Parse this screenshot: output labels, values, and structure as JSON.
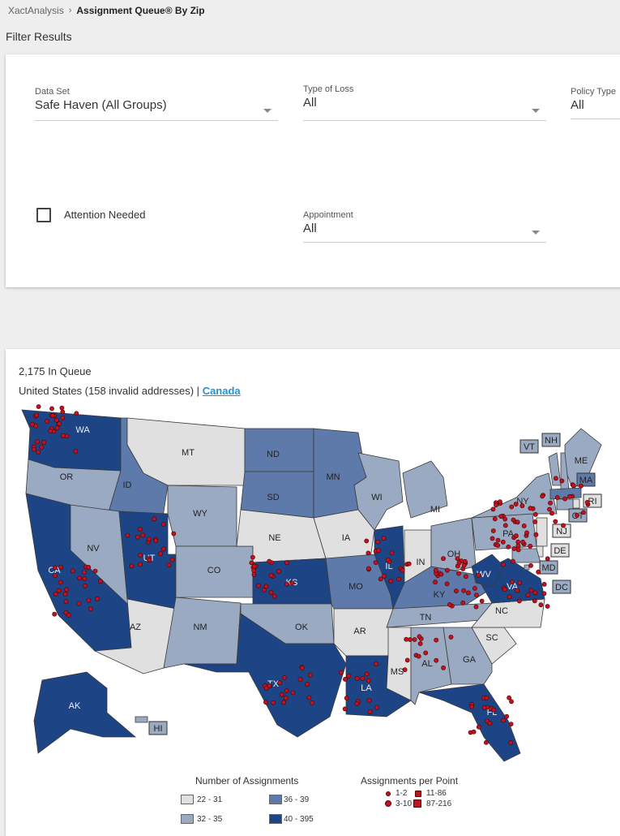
{
  "breadcrumb": {
    "root": "XactAnalysis",
    "separator": "›",
    "current": "Assignment Queue® By Zip"
  },
  "filters": {
    "title": "Filter Results",
    "data_set": {
      "label": "Data Set",
      "value": "Safe Haven (All Groups)"
    },
    "type_of_loss": {
      "label": "Type of Loss",
      "value": "All"
    },
    "policy_type": {
      "label": "Policy Type",
      "value": "All"
    },
    "attention_needed": {
      "label": "Attention Needed",
      "checked": false
    },
    "appointment": {
      "label": "Appointment",
      "value": "All"
    }
  },
  "map": {
    "queue_count": "2,175 In Queue",
    "country_line": "United States (158 invalid addresses) |",
    "canada_link": "Canada",
    "colors": {
      "c1": "#e0e0e0",
      "c2": "#9aaac2",
      "c3": "#5d7aab",
      "c4": "#1d4585",
      "dot": "#c1121f"
    },
    "states": [
      {
        "abbr": "WA",
        "level": 4
      },
      {
        "abbr": "OR",
        "level": 2
      },
      {
        "abbr": "CA",
        "level": 4
      },
      {
        "abbr": "ID",
        "level": 3
      },
      {
        "abbr": "NV",
        "level": 2
      },
      {
        "abbr": "UT",
        "level": 4
      },
      {
        "abbr": "AZ",
        "level": 1
      },
      {
        "abbr": "MT",
        "level": 1
      },
      {
        "abbr": "WY",
        "level": 2
      },
      {
        "abbr": "CO",
        "level": 2
      },
      {
        "abbr": "NM",
        "level": 2
      },
      {
        "abbr": "ND",
        "level": 3
      },
      {
        "abbr": "SD",
        "level": 3
      },
      {
        "abbr": "NE",
        "level": 1
      },
      {
        "abbr": "KS",
        "level": 4
      },
      {
        "abbr": "OK",
        "level": 2
      },
      {
        "abbr": "TX",
        "level": 4
      },
      {
        "abbr": "MN",
        "level": 3
      },
      {
        "abbr": "IA",
        "level": 1
      },
      {
        "abbr": "MO",
        "level": 3
      },
      {
        "abbr": "AR",
        "level": 1
      },
      {
        "abbr": "LA",
        "level": 4
      },
      {
        "abbr": "WI",
        "level": 2
      },
      {
        "abbr": "IL",
        "level": 4
      },
      {
        "abbr": "MI",
        "level": 2
      },
      {
        "abbr": "IN",
        "level": 1
      },
      {
        "abbr": "OH",
        "level": 2
      },
      {
        "abbr": "KY",
        "level": 3
      },
      {
        "abbr": "TN",
        "level": 2
      },
      {
        "abbr": "MS",
        "level": 1
      },
      {
        "abbr": "AL",
        "level": 2
      },
      {
        "abbr": "GA",
        "level": 2
      },
      {
        "abbr": "FL",
        "level": 4
      },
      {
        "abbr": "SC",
        "level": 1
      },
      {
        "abbr": "NC",
        "level": 1
      },
      {
        "abbr": "VA",
        "level": 4
      },
      {
        "abbr": "WV",
        "level": 4
      },
      {
        "abbr": "PA",
        "level": 2
      },
      {
        "abbr": "NY",
        "level": 2
      },
      {
        "abbr": "ME",
        "level": 2
      },
      {
        "abbr": "VT",
        "level": 2
      },
      {
        "abbr": "NH",
        "level": 2
      },
      {
        "abbr": "MA",
        "level": 3
      },
      {
        "abbr": "RI",
        "level": 1
      },
      {
        "abbr": "CT",
        "level": 2
      },
      {
        "abbr": "NJ",
        "level": 1
      },
      {
        "abbr": "DE",
        "level": 1
      },
      {
        "abbr": "MD",
        "level": 2
      },
      {
        "abbr": "DC",
        "level": 2
      },
      {
        "abbr": "AK",
        "level": 4
      },
      {
        "abbr": "HI",
        "level": 2
      }
    ],
    "legend": {
      "number_title": "Number of Assignments",
      "ranges": [
        "22 - 31",
        "32 - 35",
        "36 - 39",
        "40 - 395"
      ],
      "points_title": "Assignments per Point",
      "points": [
        "1-2",
        "3-10",
        "11-86",
        "87-216"
      ]
    }
  }
}
